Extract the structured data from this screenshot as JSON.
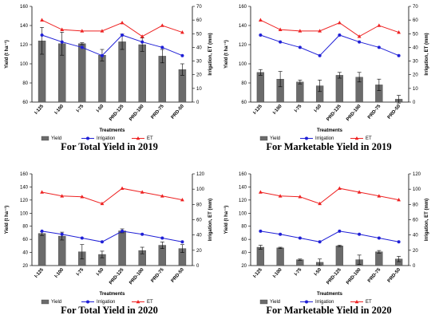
{
  "legend": {
    "yield": "Yield",
    "irrigation": "Irrigation",
    "et": "ET"
  },
  "colors": {
    "bar": "#6b6b6b",
    "irrigation": "#1f1fd6",
    "et": "#ee2222",
    "error": "#000000"
  },
  "chart_data": [
    {
      "type": "bar",
      "caption": "For Total Yield in 2019",
      "xlabel": "Treatments",
      "ylabel_left": "Yield (t ha⁻¹)",
      "ylabel_right": "Irrigation, ET (mm)",
      "ylim_left": [
        60,
        160
      ],
      "yticks_left": [
        60,
        80,
        100,
        120,
        140,
        160
      ],
      "ylim_right": [
        0,
        70
      ],
      "yticks_right": [
        0,
        10,
        20,
        30,
        40,
        50,
        60,
        70
      ],
      "categories": [
        "I-125",
        "I-100",
        "I-75",
        "I-50",
        "PRD-125",
        "PRD-100",
        "PRD-75",
        "PRD-50"
      ],
      "series": [
        {
          "name": "Yield",
          "axis": "left",
          "kind": "bar",
          "values": [
            124,
            121,
            121,
            109,
            123,
            120,
            108,
            94
          ],
          "errors": [
            14,
            12,
            1,
            6,
            8,
            7,
            7,
            6
          ]
        },
        {
          "name": "Irrigation",
          "axis": "right",
          "kind": "line",
          "values": [
            49,
            44,
            40,
            34,
            49,
            44,
            40,
            34
          ]
        },
        {
          "name": "ET",
          "axis": "right",
          "kind": "line",
          "values": [
            60,
            53,
            52,
            52,
            58,
            48,
            56,
            51
          ]
        }
      ]
    },
    {
      "type": "bar",
      "caption": "For Marketable Yield in 2019",
      "xlabel": "Treatments",
      "ylabel_left": "Yield (t ha⁻¹)",
      "ylabel_right": "Irrigation, ET (mm)",
      "ylim_left": [
        60,
        160
      ],
      "yticks_left": [
        60,
        80,
        100,
        120,
        140,
        160
      ],
      "ylim_right": [
        0,
        70
      ],
      "yticks_right": [
        0,
        10,
        20,
        30,
        40,
        50,
        60,
        70
      ],
      "categories": [
        "I-125",
        "I-100",
        "I-75",
        "I-50",
        "PRD-125",
        "PRD-100",
        "PRD-75",
        "PRD-50"
      ],
      "series": [
        {
          "name": "Yield",
          "axis": "left",
          "kind": "bar",
          "values": [
            91,
            84,
            81,
            77,
            88,
            86,
            78,
            63
          ],
          "errors": [
            3,
            8,
            2,
            6,
            3,
            5,
            6,
            4
          ]
        },
        {
          "name": "Irrigation",
          "axis": "right",
          "kind": "line",
          "values": [
            49,
            44,
            40,
            34,
            49,
            44,
            40,
            34
          ]
        },
        {
          "name": "ET",
          "axis": "right",
          "kind": "line",
          "values": [
            60,
            53,
            52,
            52,
            58,
            48,
            56,
            51
          ]
        }
      ]
    },
    {
      "type": "bar",
      "caption": "For Total Yield in 2020",
      "xlabel": "Treatments",
      "ylabel_left": "Yield (t ha⁻¹)",
      "ylabel_right": "Irrigation, ET (mm)",
      "ylim_left": [
        20,
        160
      ],
      "yticks_left": [
        20,
        40,
        60,
        80,
        100,
        120,
        140,
        160
      ],
      "ylim_right": [
        0,
        120
      ],
      "yticks_right": [
        0,
        20,
        40,
        60,
        80,
        100,
        120
      ],
      "categories": [
        "I-125",
        "I-100",
        "I-75",
        "I-50",
        "PRD-125",
        "PRD-100",
        "PRD-75",
        "PRD-50"
      ],
      "series": [
        {
          "name": "Yield",
          "axis": "left",
          "kind": "bar",
          "values": [
            69,
            65,
            41,
            37,
            73,
            43,
            51,
            46
          ],
          "errors": [
            3,
            6,
            11,
            5,
            3,
            5,
            5,
            6
          ]
        },
        {
          "name": "Irrigation",
          "axis": "right",
          "kind": "line",
          "values": [
            45,
            41,
            36,
            31,
            45,
            41,
            36,
            31
          ]
        },
        {
          "name": "ET",
          "axis": "right",
          "kind": "line",
          "values": [
            96,
            91,
            90,
            81,
            101,
            96,
            91,
            86
          ]
        }
      ]
    },
    {
      "type": "bar",
      "caption": "For Marketable Yield in 2020",
      "xlabel": "Treatments",
      "ylabel_left": "Yield (t ha⁻¹)",
      "ylabel_right": "Irrigation, ET (mm)",
      "ylim_left": [
        20,
        160
      ],
      "yticks_left": [
        20,
        40,
        60,
        80,
        100,
        120,
        140,
        160
      ],
      "ylim_right": [
        0,
        120
      ],
      "yticks_right": [
        0,
        20,
        40,
        60,
        80,
        100,
        120
      ],
      "categories": [
        "I-125",
        "I-100",
        "I-75",
        "I-50",
        "PRD-125",
        "PRD-100",
        "PRD-75",
        "PRD-50"
      ],
      "series": [
        {
          "name": "Yield",
          "axis": "left",
          "kind": "bar",
          "values": [
            48,
            47,
            29,
            25,
            50,
            29,
            41,
            30
          ],
          "errors": [
            3,
            1,
            1,
            5,
            1,
            7,
            2,
            4
          ]
        },
        {
          "name": "Irrigation",
          "axis": "right",
          "kind": "line",
          "values": [
            45,
            41,
            36,
            31,
            45,
            41,
            36,
            31
          ]
        },
        {
          "name": "ET",
          "axis": "right",
          "kind": "line",
          "values": [
            96,
            91,
            90,
            81,
            101,
            96,
            91,
            86
          ]
        }
      ]
    }
  ]
}
